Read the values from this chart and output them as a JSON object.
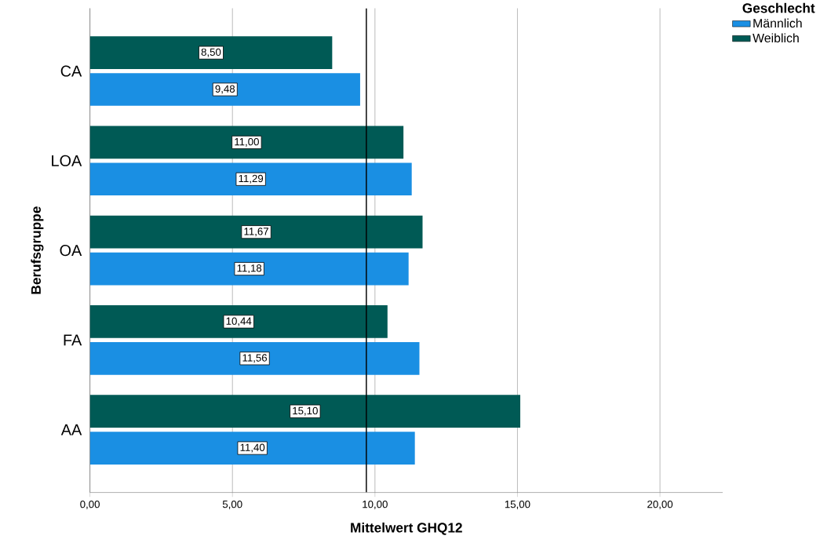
{
  "chart_data": {
    "type": "bar",
    "orientation": "horizontal",
    "xlabel": "Mittelwert GHQ12",
    "ylabel": "Berufsgruppe",
    "legend_title": "Geschlecht",
    "categories": [
      "CA",
      "LOA",
      "OA",
      "FA",
      "AA"
    ],
    "series": [
      {
        "name": "Männlich",
        "color": "#1a8fe3",
        "values": [
          9.48,
          11.29,
          11.18,
          11.56,
          11.4
        ],
        "value_labels": [
          "9,48",
          "11,29",
          "11,18",
          "11,56",
          "11,40"
        ]
      },
      {
        "name": "Weiblich",
        "color": "#005a55",
        "values": [
          8.5,
          11.0,
          11.67,
          10.44,
          15.1
        ],
        "value_labels": [
          "8,50",
          "11,00",
          "11,67",
          "10,44",
          "15,10"
        ]
      }
    ],
    "xlim": [
      0,
      22.2
    ],
    "xticks": [
      {
        "value": 0,
        "label": "0,00"
      },
      {
        "value": 5,
        "label": "5,00"
      },
      {
        "value": 10,
        "label": "10,00"
      },
      {
        "value": 15,
        "label": "15,00"
      },
      {
        "value": 20,
        "label": "20,00"
      }
    ],
    "grid": "x",
    "legend": "top right",
    "ref_lines": [
      {
        "axis": "x",
        "value": 9.7,
        "color": "#000000"
      }
    ]
  }
}
